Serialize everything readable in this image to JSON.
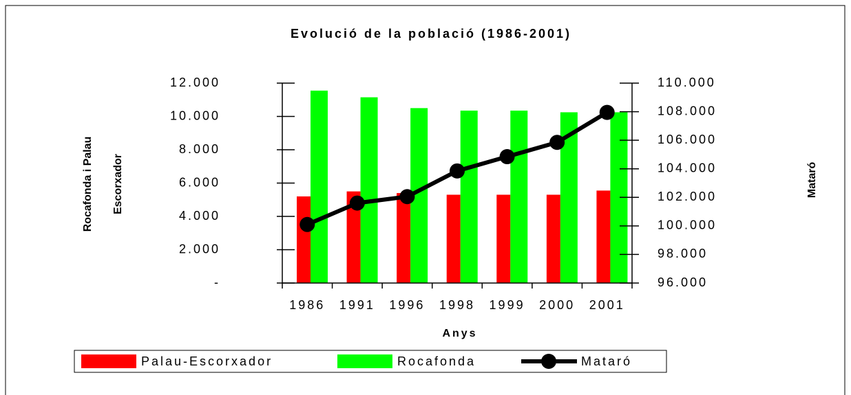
{
  "chart_data": {
    "type": "bar",
    "title": "Evolució de la població (1986-2001)",
    "xlabel": "Anys",
    "ylabel": [
      "Rocafonda i Palau",
      "Escorxador"
    ],
    "y2label": "Mataró",
    "categories": [
      "1986",
      "1991",
      "1996",
      "1998",
      "1999",
      "2000",
      "2001"
    ],
    "series": [
      {
        "name": "Palau-Escorxador",
        "color": "#ff0000",
        "type": "bar",
        "values": [
          5200,
          5500,
          5400,
          5300,
          5300,
          5300,
          5550
        ]
      },
      {
        "name": "Rocafonda",
        "color": "#00ff00",
        "type": "bar",
        "values": [
          11550,
          11150,
          10500,
          10350,
          10350,
          10250,
          10250
        ]
      },
      {
        "name": "Mataró",
        "color": "#000000",
        "type": "line",
        "axis": "y2",
        "values": [
          100100,
          101600,
          102050,
          103850,
          104850,
          105850,
          107950
        ]
      }
    ],
    "ylim": [
      0,
      12000
    ],
    "yticks": [
      {
        "value": 0,
        "label": "-"
      },
      {
        "value": 2000,
        "label": "2.000"
      },
      {
        "value": 4000,
        "label": "4.000"
      },
      {
        "value": 6000,
        "label": "6.000"
      },
      {
        "value": 8000,
        "label": "8.000"
      },
      {
        "value": 10000,
        "label": "10.000"
      },
      {
        "value": 12000,
        "label": "12.000"
      }
    ],
    "y2lim": [
      96000,
      110000
    ],
    "y2ticks": [
      {
        "value": 96000,
        "label": "96.000"
      },
      {
        "value": 98000,
        "label": "98.000"
      },
      {
        "value": 100000,
        "label": "100.000"
      },
      {
        "value": 102000,
        "label": "102.000"
      },
      {
        "value": 104000,
        "label": "104.000"
      },
      {
        "value": 106000,
        "label": "106.000"
      },
      {
        "value": 108000,
        "label": "108.000"
      },
      {
        "value": 110000,
        "label": "110.000"
      }
    ],
    "grid": false,
    "legend": "bottom"
  }
}
